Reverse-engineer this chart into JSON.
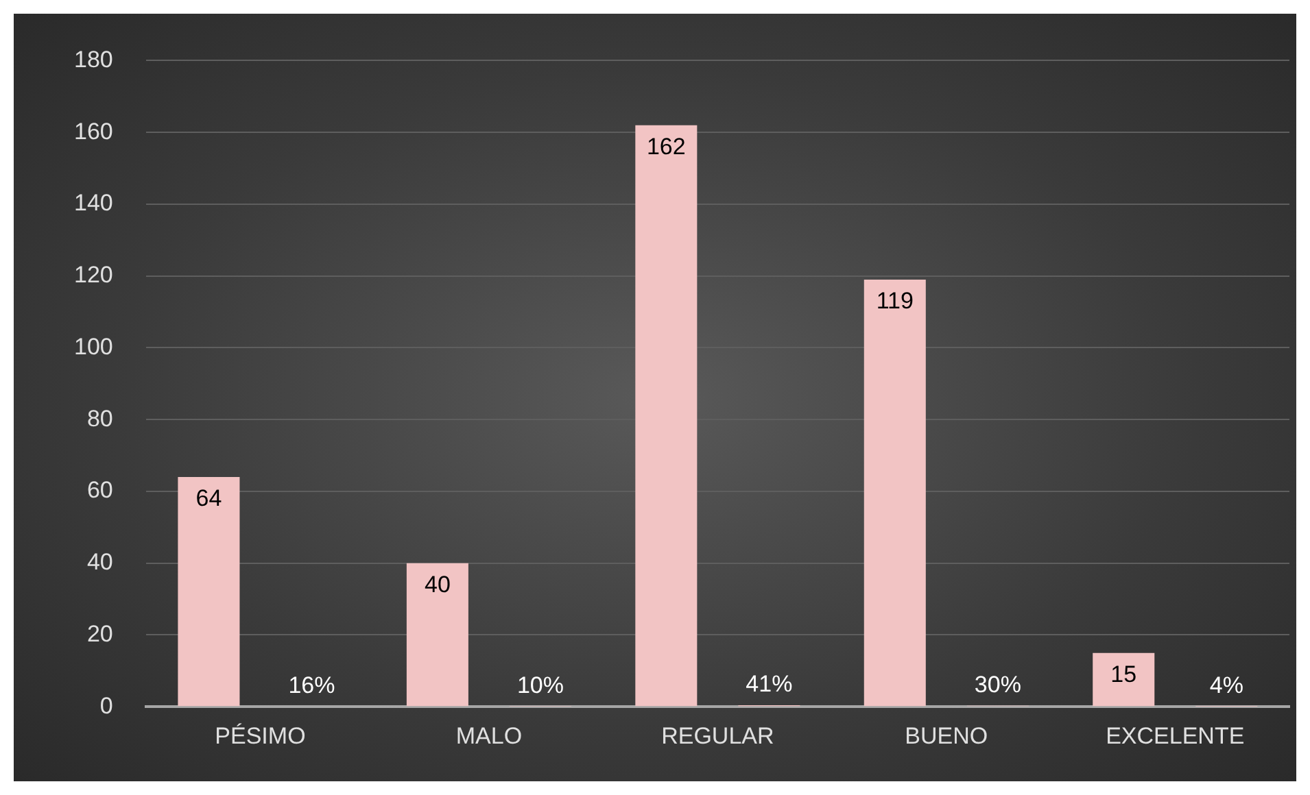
{
  "chart_data": {
    "type": "bar",
    "categories": [
      "PÉSIMO",
      "MALO",
      "REGULAR",
      "BUENO",
      "EXCELENTE"
    ],
    "series": [
      {
        "color": "#f2c4c4",
        "values": [
          64,
          40,
          162,
          119,
          15
        ],
        "value_labels": [
          "64",
          "40",
          "162",
          "119",
          "15"
        ]
      },
      {
        "color": "#f2c4c4",
        "values": [
          0.16,
          0.1,
          0.41,
          0.3,
          0.04
        ],
        "value_labels": [
          "16%",
          "10%",
          "41%",
          "30%",
          "4%"
        ]
      }
    ],
    "ylim": [
      0,
      180
    ],
    "yticks": [
      0,
      20,
      40,
      60,
      80,
      100,
      120,
      140,
      160,
      180
    ],
    "grid": "y",
    "legend": false
  }
}
